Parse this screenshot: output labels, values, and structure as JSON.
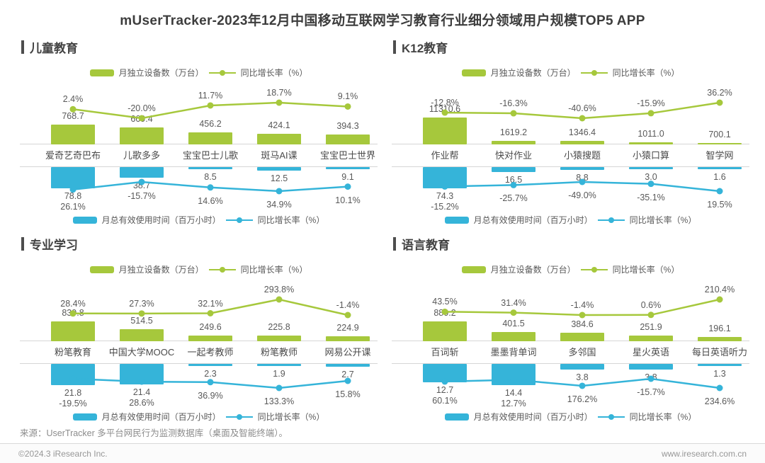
{
  "page_title": "mUserTracker-2023年12月中国移动互联网学习教育行业细分领域用户规模TOP5 APP",
  "colors": {
    "green": "#a6c83c",
    "blue": "#35b4d9",
    "grid_line": "#d6d6d6"
  },
  "legend": {
    "devices": "月独立设备数（万台）",
    "devices_growth": "同比增长率（%）",
    "usage": "月总有效使用时间（百万小时）",
    "usage_growth": "同比增长率（%）"
  },
  "chart_data": [
    {
      "id": "kids-education",
      "type": "bar",
      "title": "儿童教育",
      "categories": [
        "爱奇艺奇巴布",
        "儿歌多多",
        "宝宝巴士儿歌",
        "斑马AI课",
        "宝宝巴士世界"
      ],
      "series": [
        {
          "name": "月独立设备数（万台）",
          "type": "bar",
          "axis": "top",
          "values": [
            768.7,
            669.4,
            456.2,
            424.1,
            394.3
          ]
        },
        {
          "name": "同比增长率（%）",
          "type": "line",
          "axis": "top",
          "values": [
            2.4,
            -20.0,
            11.7,
            18.7,
            9.1
          ]
        },
        {
          "name": "月总有效使用时间（百万小时）",
          "type": "bar",
          "axis": "bottom",
          "values": [
            78.8,
            38.7,
            8.5,
            12.5,
            9.1
          ]
        },
        {
          "name": "同比增长率（%）",
          "type": "line",
          "axis": "bottom",
          "values": [
            26.1,
            -15.7,
            14.6,
            34.9,
            10.1
          ]
        }
      ]
    },
    {
      "id": "k12-education",
      "type": "bar",
      "title": "K12教育",
      "categories": [
        "作业帮",
        "快对作业",
        "小猿搜题",
        "小猿口算",
        "智学网"
      ],
      "series": [
        {
          "name": "月独立设备数（万台）",
          "type": "bar",
          "axis": "top",
          "values": [
            11310.6,
            1619.2,
            1346.4,
            1011.0,
            700.1
          ]
        },
        {
          "name": "同比增长率（%）",
          "type": "line",
          "axis": "top",
          "values": [
            -12.8,
            -16.3,
            -40.6,
            -15.9,
            36.2
          ]
        },
        {
          "name": "月总有效使用时间（百万小时）",
          "type": "bar",
          "axis": "bottom",
          "values": [
            74.3,
            16.5,
            8.8,
            3.0,
            1.6
          ]
        },
        {
          "name": "同比增长率（%）",
          "type": "line",
          "axis": "bottom",
          "values": [
            -15.2,
            -25.7,
            -49.0,
            -35.1,
            19.5
          ]
        }
      ]
    },
    {
      "id": "professional-learning",
      "type": "bar",
      "title": "专业学习",
      "categories": [
        "粉笔教育",
        "中国大学MOOC",
        "一起考教师",
        "粉笔教师",
        "网易公开课"
      ],
      "series": [
        {
          "name": "月独立设备数（万台）",
          "type": "bar",
          "axis": "top",
          "values": [
            839.8,
            514.5,
            249.6,
            225.8,
            224.9
          ]
        },
        {
          "name": "同比增长率（%）",
          "type": "line",
          "axis": "top",
          "values": [
            28.4,
            27.3,
            32.1,
            293.8,
            -1.4
          ]
        },
        {
          "name": "月总有效使用时间（百万小时）",
          "type": "bar",
          "axis": "bottom",
          "values": [
            21.8,
            21.4,
            2.3,
            1.9,
            2.7
          ]
        },
        {
          "name": "同比增长率（%）",
          "type": "line",
          "axis": "bottom",
          "values": [
            -19.5,
            28.6,
            36.9,
            133.3,
            15.8
          ]
        }
      ]
    },
    {
      "id": "language-education",
      "type": "bar",
      "title": "语言教育",
      "categories": [
        "百词斩",
        "墨墨背单词",
        "多邻国",
        "星火英语",
        "每日英语听力"
      ],
      "series": [
        {
          "name": "月独立设备数（万台）",
          "type": "bar",
          "axis": "top",
          "values": [
            880.2,
            401.5,
            384.6,
            251.9,
            196.1
          ]
        },
        {
          "name": "同比增长率（%）",
          "type": "line",
          "axis": "top",
          "values": [
            43.5,
            31.4,
            -1.4,
            0.6,
            210.4
          ]
        },
        {
          "name": "月总有效使用时间（百万小时）",
          "type": "bar",
          "axis": "bottom",
          "values": [
            12.7,
            14.4,
            3.8,
            3.8,
            1.3
          ]
        },
        {
          "name": "同比增长率（%）",
          "type": "line",
          "axis": "bottom",
          "values": [
            60.1,
            12.7,
            176.2,
            -15.7,
            234.6
          ]
        }
      ]
    }
  ],
  "footer": {
    "source": "来源：UserTracker 多平台网民行为监测数据库（桌面及智能终端）。",
    "copyright": "©2024.3 iResearch Inc.",
    "website": "www.iresearch.com.cn"
  }
}
